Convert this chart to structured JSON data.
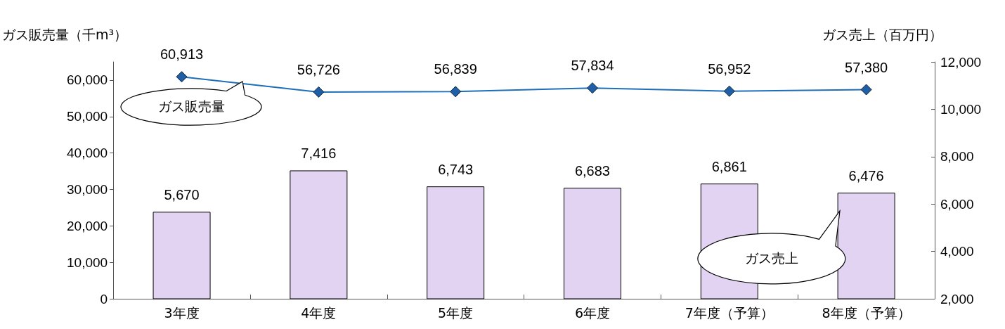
{
  "chart_data": {
    "type": "bar",
    "categories": [
      "3年度",
      "4年度",
      "5年度",
      "6年度",
      "7年度（予算）",
      "8年度（予算）"
    ],
    "ylabel": "ガス販売量（千m³）",
    "y2label": "ガス売上（百万円）",
    "series": [
      {
        "name": "ガス販売量",
        "type": "line",
        "color": "#1f6fb8",
        "marker": "diamond",
        "values": [
          60913,
          56726,
          56839,
          57834,
          56952,
          57380
        ],
        "value_labels": [
          "60,913",
          "56,726",
          "56,839",
          "57,834",
          "56,952",
          "57,380"
        ]
      },
      {
        "name": "ガス売上",
        "axis": "y2",
        "color": "#e3d3f3",
        "values": [
          5670,
          7416,
          6743,
          6683,
          6861,
          6476
        ],
        "value_labels": [
          "5,670",
          "7,416",
          "6,743",
          "6,683",
          "6,861",
          "6,476"
        ]
      }
    ],
    "ylim": [
      0,
      65000
    ],
    "yticks": [
      {
        "value": 0,
        "label": "0"
      },
      {
        "value": 10000,
        "label": "10,000"
      },
      {
        "value": 20000,
        "label": "20,000"
      },
      {
        "value": 30000,
        "label": "30,000"
      },
      {
        "value": 40000,
        "label": "40,000"
      },
      {
        "value": 50000,
        "label": "50,000"
      },
      {
        "value": 60000,
        "label": "60,000"
      }
    ],
    "y2lim": [
      2000,
      12000
    ],
    "y2ticks": [
      {
        "value": 2000,
        "label": "2,000"
      },
      {
        "value": 4000,
        "label": "4,000"
      },
      {
        "value": 6000,
        "label": "6,000"
      },
      {
        "value": 8000,
        "label": "8,000"
      },
      {
        "value": 10000,
        "label": "10,000"
      },
      {
        "value": 12000,
        "label": "12,000"
      }
    ],
    "grid": false,
    "legend": false
  }
}
